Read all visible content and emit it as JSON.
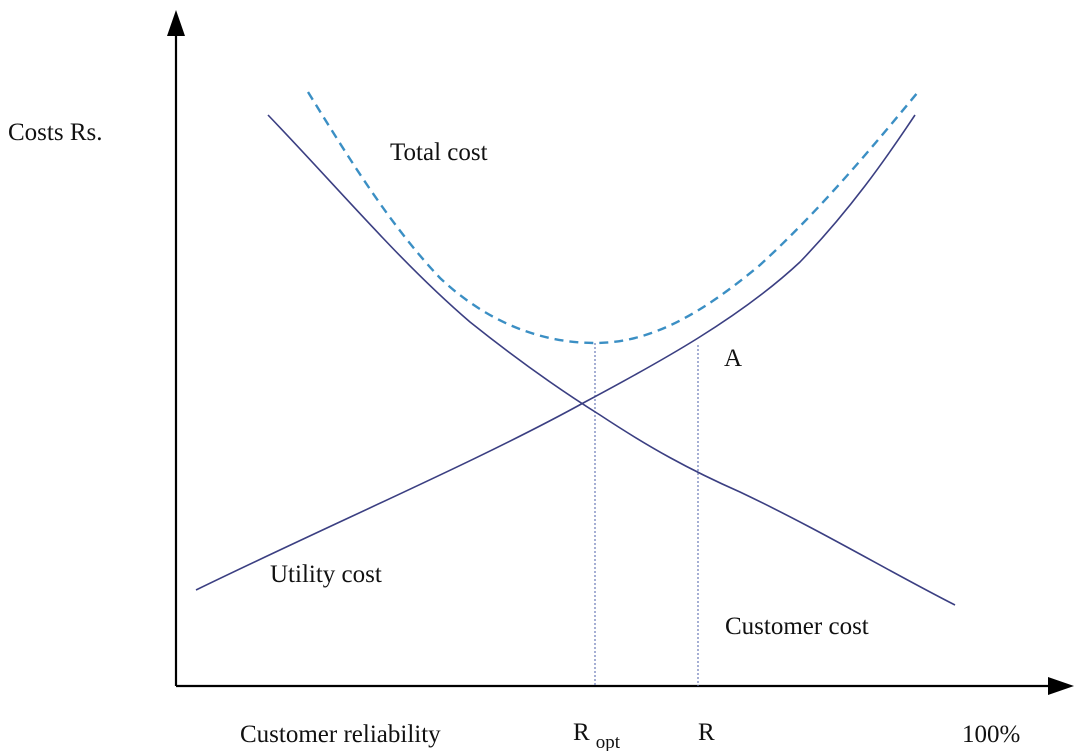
{
  "y_axis_label": "Costs Rs.",
  "curves": {
    "total": "Total cost",
    "utility": "Utility cost",
    "customer": "Customer cost"
  },
  "point_label": "A",
  "x_axis": {
    "label": "Customer reliability",
    "r_opt": {
      "text": "R",
      "subscript": "opt"
    },
    "r": "R",
    "end": "100%"
  }
}
